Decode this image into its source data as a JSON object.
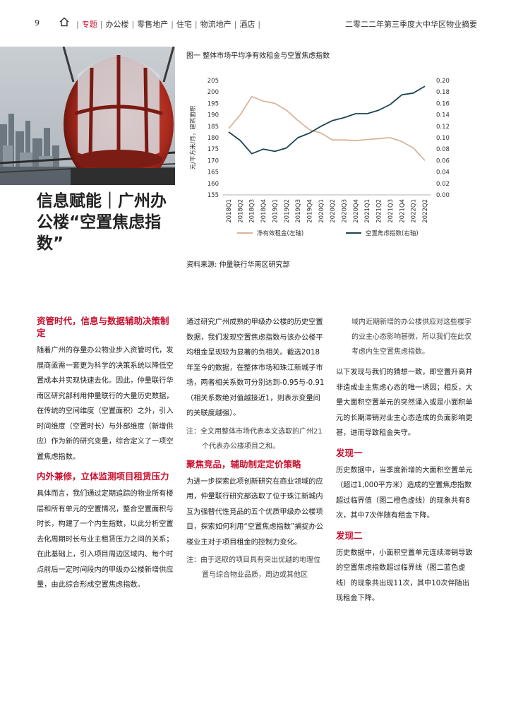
{
  "header": {
    "page_number": "9",
    "nav": [
      "专题",
      "办公楼",
      "零售地产",
      "住宅",
      "物流地产",
      "酒店"
    ],
    "right_title": "二零二二年第三季度大中华区物业摘要",
    "accent": "#c8102e"
  },
  "title": "信息赋能｜广州办公楼“空置焦虑指数”",
  "chart": {
    "title": "图一 整体市场平均净有效租金与空置焦虑指数",
    "source": "资料来源: 仲量联行华南区研究部"
  },
  "chart_data": {
    "type": "line",
    "x": [
      "2018Q1",
      "2018Q2",
      "2018Q3",
      "2018Q4",
      "2019Q1",
      "2019Q2",
      "2019Q3",
      "2019Q4",
      "2020Q1",
      "2020Q2",
      "2020Q3",
      "2020Q4",
      "2021Q1",
      "2021Q2",
      "2021Q3",
      "2021Q4",
      "2022Q1",
      "2022Q2"
    ],
    "ylabel": "元/平方米/月，建筑面积",
    "ylim": [
      155,
      205
    ],
    "yticks": [
      155,
      160,
      165,
      170,
      175,
      180,
      185,
      190,
      195,
      200,
      205
    ],
    "y2lim": [
      0,
      0.2
    ],
    "y2ticks": [
      "0.00",
      "0.02",
      "0.04",
      "0.06",
      "0.08",
      "0.10",
      "0.12",
      "0.14",
      "0.16",
      "0.18",
      "0.20"
    ],
    "series": [
      {
        "name": "净有效租金(左轴)",
        "axis": "left",
        "color": "#d8b59a",
        "values": [
          184,
          190,
          198,
          196,
          195,
          192,
          187.5,
          183.5,
          182,
          179,
          179,
          178.7,
          179.2,
          179.6,
          180,
          178.3,
          175.5,
          170
        ]
      },
      {
        "name": "空置焦虑指数(右轴)",
        "axis": "right",
        "color": "#1a4650",
        "values": [
          0.11,
          0.095,
          0.072,
          0.08,
          0.076,
          0.082,
          0.1,
          0.108,
          0.12,
          0.13,
          0.135,
          0.142,
          0.142,
          0.148,
          0.158,
          0.175,
          0.178,
          0.19
        ]
      }
    ],
    "legend_placement": "bottom"
  },
  "col1": {
    "h1": "资管时代，信息与数据辅助决策制定",
    "p1": "随着广州的存量办公物业步入资管时代，发展商亟需一套更为科学的决策系统以降低空置成本并实现快速去化。因此，仲量联行华南区研究部利用仲量联行的大量历史数据，在传统的空间维度（空置面积）之外，引入时间维度（空置时长）与外部维度（新增供应）作为新的研究变量，综合定义了一项空置焦虑指数。",
    "h2": "内外兼修，立体监测项目租赁压力",
    "p2": "具体而言，我们通过定期追踪的物业所有楼层和所有单元的空置情况，整合空置面积与时长，构建了一个内生指数，以此分析空置去化周期时长与业主租赁压力之间的关系；在此基础上，引入项目周边区域内、每个时点前后一定时间段内的甲级办公楼新增供应量，由此综合形成空置焦虑指数。"
  },
  "col2": {
    "p1": "通过研究广州成熟的甲级办公楼的历史空置数据，我们发现空置焦虑指数与该办公楼平均租金呈现较为显著的负相关。截选2018年至今的数据，在整体市场和珠江新城子市场，两者相关系数可分别达到-0.95与-0.91（相关系数绝对值越接近1，则表示变量间的关联度越强）。",
    "note1": "注：全文用整体市场代表本文选取的广州21个代表办公楼项目之和。",
    "h1": "聚焦竞品，辅助制定定价策略",
    "p2": "为进一步探索此项创新研究在商业领域的应用，仲量联行研究部选取了位于珠江新城内互为强替代性竞品的五个优质甲级办公楼项目，探索如何利用“空置焦虑指数”捕捉办公楼业主对于项目租金的控制力变化。",
    "note2": "注：由于选取的项目具有突出优越的地理位置与综合物业品质，周边或其他区"
  },
  "col3": {
    "note_cont": "域内近期新增的办公楼供应对这些楼宇的业主心态影响甚微，所以我们在此仅考虑内生空置焦虑指数。",
    "p1": "以下发现与我们的猜想一致，即空置升高并非造成业主焦虑心态的唯一诱因；相反，大量大面积空置单元的突然涌入或是小面积单元的长期滞销对业主心态造成的负面影响更甚，进而导致租金失守。",
    "h1": "发现一",
    "p2": "历史数据中，当季度新增的大面积空置单元（超过1,000平方米）造成的空置焦虑指数超过临界值（图二橙色虚线）的现象共有8次，其中7次伴随有租金下降。",
    "h2": "发现二",
    "p3": "历史数据中，小面积空置单元连续滞销导致的空置焦虑指数超过临界线（图二蓝色虚线）的现象共出现11次，其中10次伴随出现租金下降。"
  }
}
